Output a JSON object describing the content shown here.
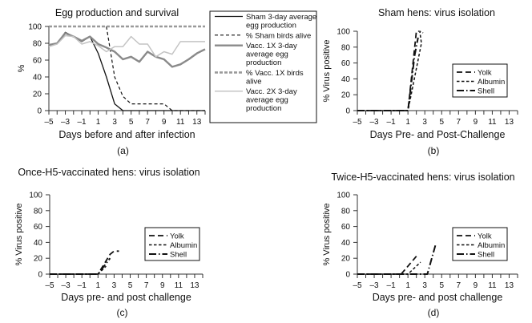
{
  "figure": {
    "colors": {
      "black": "#111111",
      "vacc1x": "#8a8a8a",
      "vacc1x_alive": "#9a9a9a",
      "vacc2x": "#c4c4c4"
    }
  },
  "chart_data": [
    {
      "id": "a",
      "type": "line",
      "title": "Egg production and survival",
      "xlabel": "Days before and after infection",
      "ylabel": "%",
      "panel_label": "(a)",
      "xlim": [
        -5,
        14
      ],
      "ylim": [
        0,
        100
      ],
      "xticks": [
        -5,
        -4,
        -3,
        -2,
        -1,
        0,
        1,
        2,
        3,
        4,
        5,
        6,
        7,
        8,
        9,
        10,
        11,
        12,
        13,
        14
      ],
      "xtick_labels": [
        "–5",
        "–3",
        "–1",
        "1",
        "3",
        "5",
        "7",
        "9",
        "11",
        "13"
      ],
      "xtick_label_values": [
        -5,
        -3,
        -1,
        1,
        3,
        5,
        7,
        9,
        11,
        13
      ],
      "yticks": [
        0,
        20,
        40,
        60,
        80,
        100
      ],
      "ytick_labels": [
        "0",
        "20",
        "40",
        "60",
        "80",
        "100"
      ],
      "grid": false,
      "legend_placement": "outside-right",
      "series": [
        {
          "name": "Sham 3-day average egg production",
          "legend_lines": [
            "Sham 3-day average",
            "egg production"
          ],
          "style": "solid-black",
          "x": [
            -5,
            -4,
            -3,
            -2,
            -1,
            0,
            1,
            2,
            3,
            4,
            5,
            6,
            7,
            8,
            9,
            10,
            11,
            12,
            13,
            14
          ],
          "y": [
            78,
            80,
            93,
            88,
            82,
            88,
            68,
            40,
            8,
            0,
            0,
            0,
            0,
            0,
            0,
            0,
            0,
            0,
            0,
            0
          ]
        },
        {
          "name": "% Sham birds alive",
          "legend_lines": [
            "% Sham birds alive"
          ],
          "style": "dashed-black",
          "x": [
            2,
            3,
            4,
            5,
            6,
            7,
            8,
            9,
            10,
            11,
            12,
            13,
            14
          ],
          "y": [
            100,
            40,
            17,
            8,
            8,
            8,
            8,
            8,
            0,
            0,
            0,
            0,
            0
          ]
        },
        {
          "name": "Vacc. 1X 3-day average egg production",
          "legend_lines": [
            "Vacc. 1X 3-day",
            "average egg",
            "production"
          ],
          "style": "solid-dark-gray-thick",
          "x": [
            -5,
            -4,
            -3,
            -2,
            -1,
            0,
            1,
            2,
            3,
            4,
            5,
            6,
            7,
            8,
            9,
            10,
            11,
            12,
            13,
            14
          ],
          "y": [
            78,
            80,
            92,
            88,
            83,
            88,
            79,
            75,
            70,
            61,
            64,
            58,
            70,
            64,
            61,
            52,
            55,
            61,
            68,
            73
          ]
        },
        {
          "name": "% Vacc. 1X birds alive",
          "legend_lines": [
            "% Vacc. 1X birds",
            "alive"
          ],
          "style": "dashed-gray-thick",
          "x": [
            -5,
            14
          ],
          "y": [
            100,
            100
          ]
        },
        {
          "name": "Vacc. 2X 3-day average egg production",
          "legend_lines": [
            "Vacc. 2X 3-day",
            "average egg",
            "production"
          ],
          "style": "solid-light-gray",
          "x": [
            -5,
            -4,
            -3,
            -2,
            -1,
            0,
            1,
            2,
            3,
            4,
            5,
            6,
            7,
            8,
            9,
            10,
            11,
            12,
            13,
            14
          ],
          "y": [
            76,
            79,
            89,
            88,
            79,
            82,
            77,
            70,
            76,
            76,
            88,
            79,
            79,
            64,
            70,
            67,
            82,
            82,
            82,
            82
          ]
        }
      ]
    },
    {
      "id": "b",
      "type": "line",
      "title": "Sham hens: virus isolation",
      "xlabel": "Days Pre- and Post-Challenge",
      "ylabel": "% Virus positive",
      "panel_label": "(b)",
      "xlim": [
        -5,
        14
      ],
      "ylim": [
        0,
        100
      ],
      "xtick_labels": [
        "–5",
        "–3",
        "–1",
        "1",
        "3",
        "5",
        "7",
        "9",
        "11",
        "13"
      ],
      "xtick_label_values": [
        -5,
        -3,
        -1,
        1,
        3,
        5,
        7,
        9,
        11,
        13
      ],
      "ytick_labels": [
        "0",
        "20",
        "40",
        "60",
        "80",
        "100"
      ],
      "yticks": [
        0,
        20,
        40,
        60,
        80,
        100
      ],
      "grid": false,
      "legend_placement": "center-right",
      "series": [
        {
          "name": "Yolk",
          "style": "long-dash",
          "x": [
            -5,
            1,
            2,
            2.3
          ],
          "y": [
            0,
            0,
            100,
            100
          ]
        },
        {
          "name": "Albumin",
          "style": "short-dash",
          "x": [
            -5,
            1,
            2.6,
            2.4,
            2.8
          ],
          "y": [
            0,
            0,
            85,
            100,
            98
          ]
        },
        {
          "name": "Shell",
          "style": "dash-dot",
          "x": [
            -5,
            1,
            1.8,
            2.2
          ],
          "y": [
            0,
            0,
            70,
            92
          ]
        }
      ]
    },
    {
      "id": "c",
      "type": "line",
      "title": "Once-H5-vaccinated hens: virus isolation",
      "xlabel": "Days pre- and post challenge",
      "ylabel": "% Virus positive",
      "panel_label": "(c)",
      "xlim": [
        -5,
        14
      ],
      "ylim": [
        0,
        100
      ],
      "xtick_labels": [
        "–5",
        "–3",
        "–1",
        "1",
        "3",
        "5",
        "7",
        "9",
        "11",
        "13"
      ],
      "xtick_label_values": [
        -5,
        -3,
        -1,
        1,
        3,
        5,
        7,
        9,
        11,
        13
      ],
      "ytick_labels": [
        "0",
        "20",
        "40",
        "60",
        "80",
        "100"
      ],
      "yticks": [
        0,
        20,
        40,
        60,
        80,
        100
      ],
      "grid": false,
      "legend_placement": "center-right",
      "series": [
        {
          "name": "Yolk",
          "style": "long-dash",
          "x": [
            -5,
            1,
            2.5,
            3,
            3.6
          ],
          "y": [
            0,
            0,
            25,
            29,
            29
          ]
        },
        {
          "name": "Albumin",
          "style": "short-dash",
          "x": [
            -5,
            1,
            2
          ],
          "y": [
            0,
            0,
            10
          ]
        },
        {
          "name": "Shell",
          "style": "dash-dot",
          "x": [
            -5,
            1,
            2.5
          ],
          "y": [
            0,
            0,
            20
          ]
        }
      ]
    },
    {
      "id": "d",
      "type": "line",
      "title": "Twice-H5-vaccinated hens: virus isolation",
      "xlabel": "Days pre- and post challenge",
      "ylabel": "% Virus positive",
      "panel_label": "(d)",
      "xlim": [
        -5,
        14
      ],
      "ylim": [
        0,
        100
      ],
      "xtick_labels": [
        "–5",
        "–3",
        "–1",
        "1",
        "3",
        "5",
        "7",
        "9",
        "11",
        "13"
      ],
      "xtick_label_values": [
        -5,
        -3,
        -1,
        1,
        3,
        5,
        7,
        9,
        11,
        13
      ],
      "ytick_labels": [
        "0",
        "20",
        "40",
        "60",
        "80",
        "100"
      ],
      "yticks": [
        0,
        20,
        40,
        60,
        80,
        100
      ],
      "grid": false,
      "legend_placement": "center-right",
      "series": [
        {
          "name": "Yolk",
          "style": "long-dash",
          "x": [
            -5,
            0.2,
            2.2
          ],
          "y": [
            0,
            0,
            25
          ]
        },
        {
          "name": "Albumin",
          "style": "short-dash",
          "x": [
            -5,
            1,
            2.5
          ],
          "y": [
            0,
            0,
            15
          ]
        },
        {
          "name": "Shell",
          "style": "dash-dot",
          "x": [
            -5,
            1,
            1.3,
            3.3,
            4.3
          ],
          "y": [
            0,
            0,
            0,
            0,
            38
          ]
        }
      ]
    }
  ]
}
